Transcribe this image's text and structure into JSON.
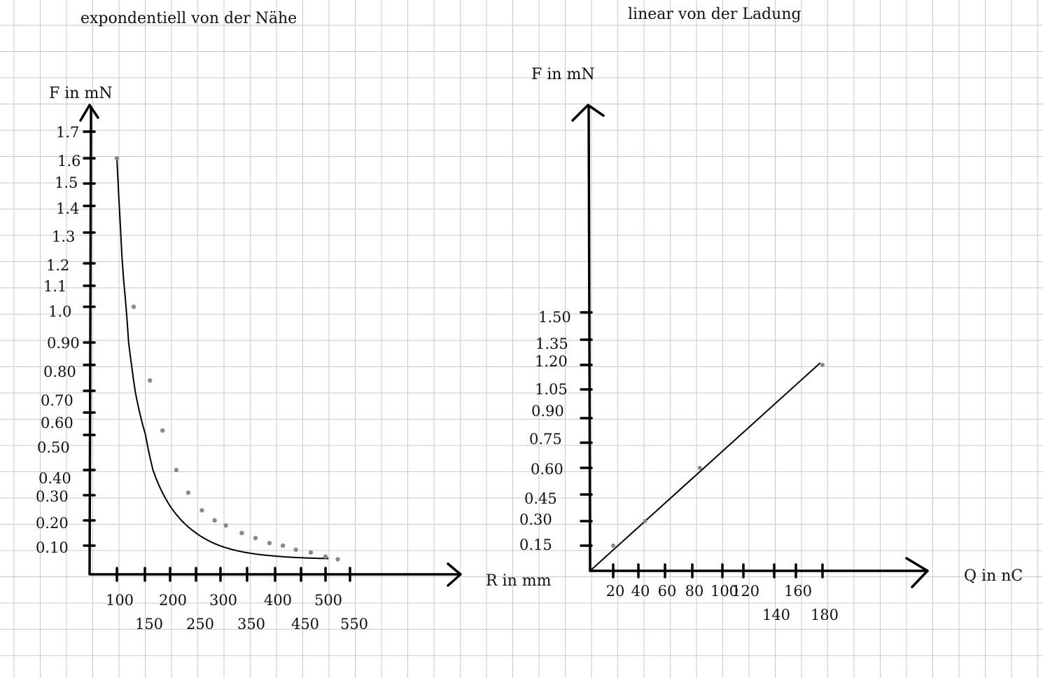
{
  "chart_data": [
    {
      "type": "scatter",
      "title": "expondentiell von der Nähe",
      "xlabel": "R in mm",
      "ylabel": "F in mN",
      "x_ticks": [
        "100",
        "150",
        "200",
        "250",
        "300",
        "350",
        "400",
        "450",
        "500",
        "550"
      ],
      "y_ticks": [
        "1.7",
        "1.6",
        "1.5",
        "1.4",
        "1.3",
        "1.2",
        "1.1",
        "1.0",
        "0.90",
        "0.80",
        "0.70",
        "0.60",
        "0.50",
        "0.40",
        "0.30",
        "0.20",
        "0.10"
      ],
      "grid": true,
      "series": [
        {
          "points": [
            {
              "x": 100,
              "y": 1.6
            },
            {
              "x": 130,
              "y": 1.0
            },
            {
              "x": 160,
              "y": 0.74
            },
            {
              "x": 185,
              "y": 0.52
            },
            {
              "x": 212,
              "y": 0.4
            },
            {
              "x": 235,
              "y": 0.31
            },
            {
              "x": 262,
              "y": 0.24
            },
            {
              "x": 288,
              "y": 0.2
            },
            {
              "x": 310,
              "y": 0.18
            },
            {
              "x": 340,
              "y": 0.15
            },
            {
              "x": 365,
              "y": 0.13
            },
            {
              "x": 390,
              "y": 0.11
            },
            {
              "x": 415,
              "y": 0.1
            },
            {
              "x": 440,
              "y": 0.085
            },
            {
              "x": 470,
              "y": 0.075
            },
            {
              "x": 500,
              "y": 0.06
            },
            {
              "x": 525,
              "y": 0.05
            }
          ]
        }
      ],
      "trendline": {
        "type": "hyperbolic-fit"
      }
    },
    {
      "type": "line",
      "title": "linear von der Ladung",
      "xlabel": "Q in nC",
      "ylabel": "F in mN",
      "x_ticks": [
        "20",
        "40",
        "60",
        "80",
        "100",
        "120",
        "140",
        "160",
        "180"
      ],
      "y_ticks": [
        "1.50",
        "1.35",
        "1.20",
        "1.05",
        "0.90",
        "0.75",
        "0.60",
        "0.45",
        "0.30",
        "0.15"
      ],
      "grid": true,
      "series": [
        {
          "points": [
            {
              "x": 20,
              "y": 0.15
            },
            {
              "x": 45,
              "y": 0.3
            },
            {
              "x": 85,
              "y": 0.6
            },
            {
              "x": 180,
              "y": 1.2
            }
          ]
        }
      ],
      "trendline": {
        "type": "linear",
        "from": [
          0,
          0
        ],
        "to": [
          178,
          1.21
        ]
      }
    }
  ]
}
